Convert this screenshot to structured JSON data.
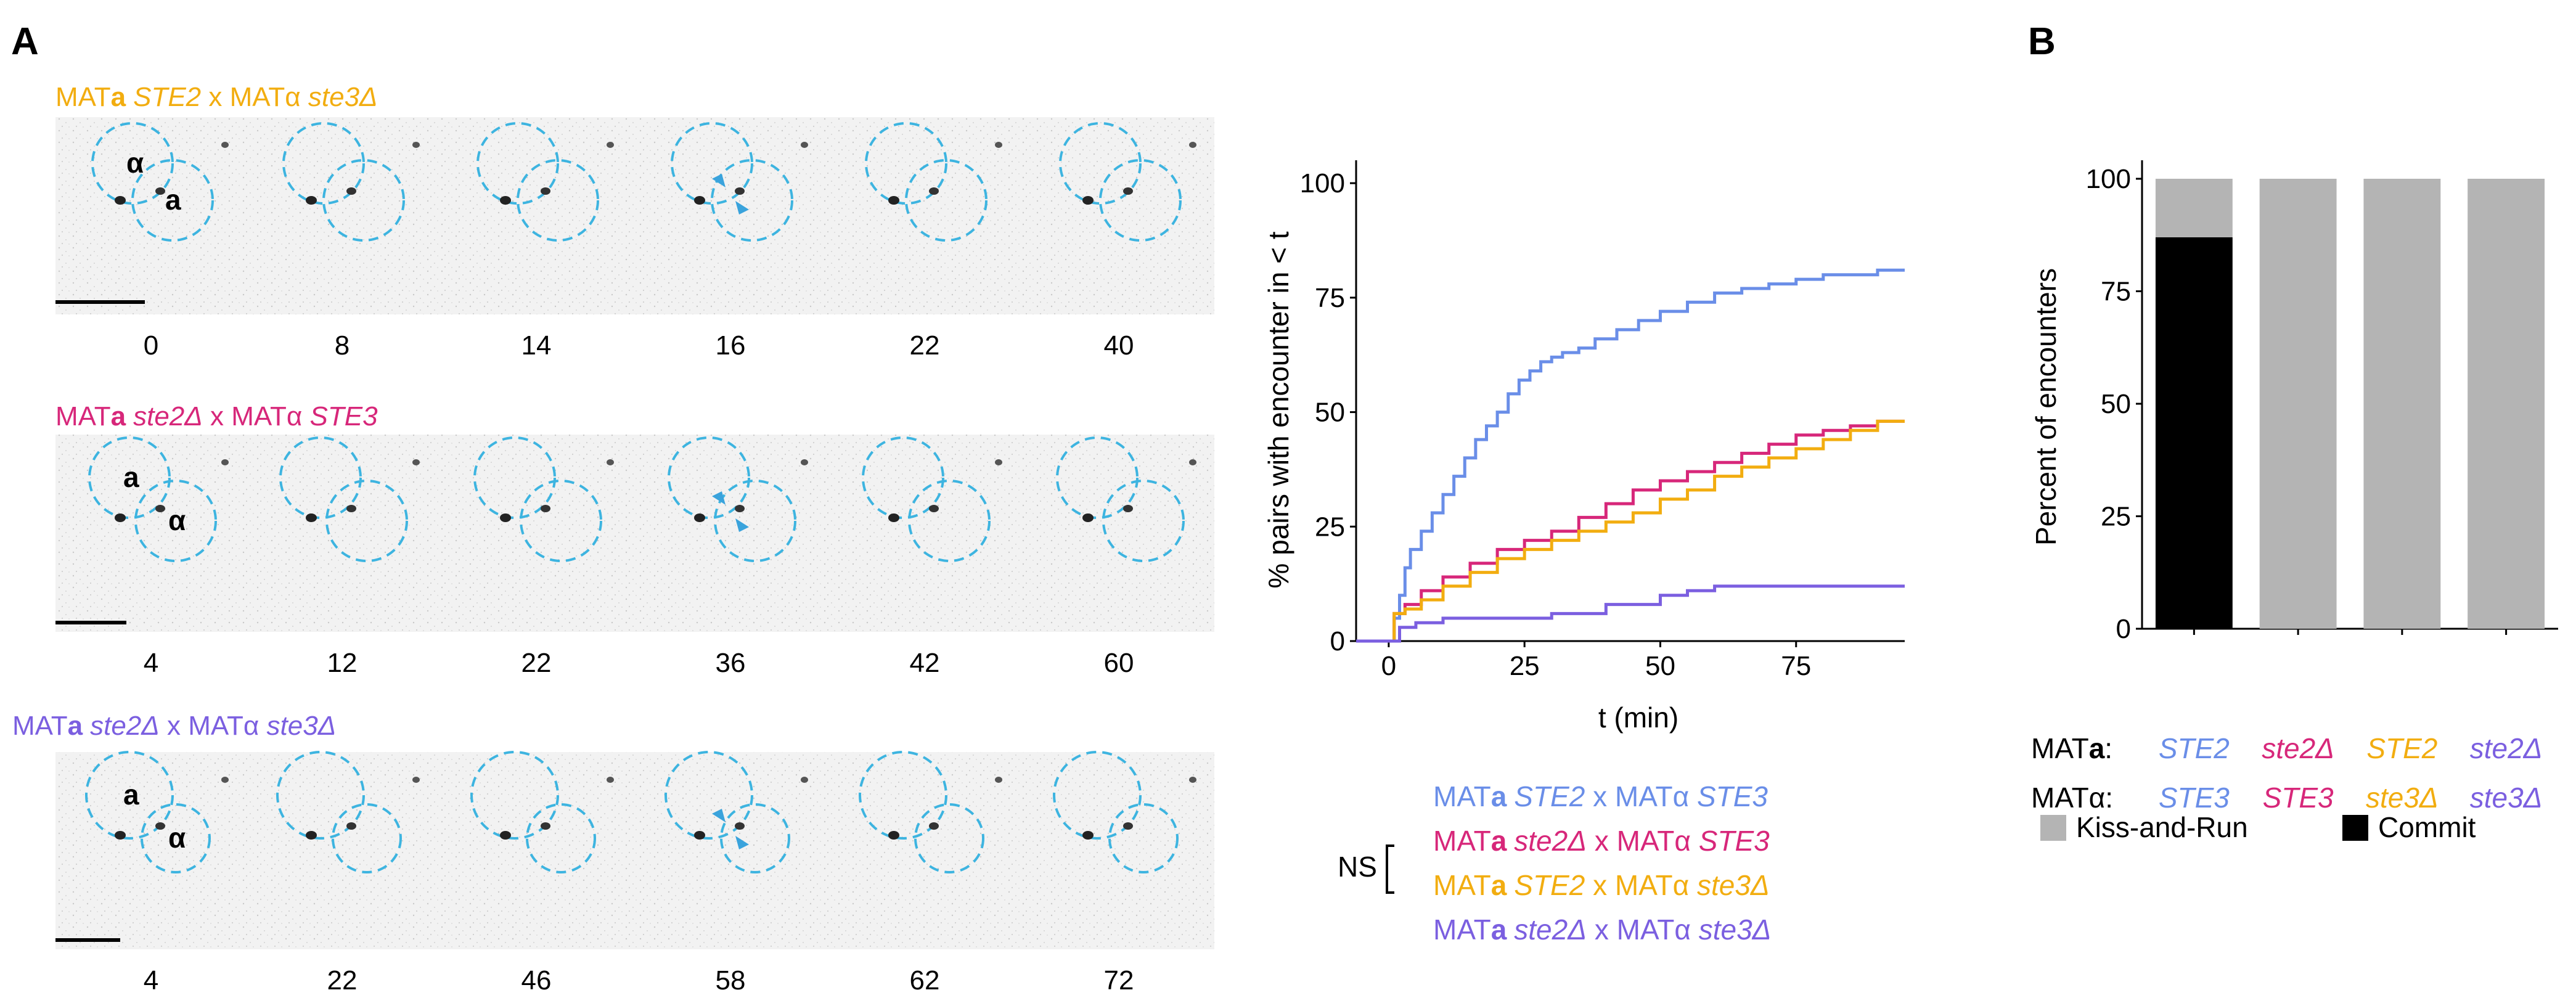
{
  "panel_labels": {
    "a": "A",
    "b": "B"
  },
  "colors": {
    "blue": "#6a8ee8",
    "magenta": "#d7277a",
    "orange": "#f2ad10",
    "purple": "#7b5fe0",
    "circle": "#3db4e0",
    "arrow": "#3aa3dc",
    "grey": "#b4b4b4",
    "black": "#000000"
  },
  "timelapse_rows": [
    {
      "title": {
        "prefix": "MAT",
        "a": "a",
        "gene1": "STE2",
        "mid": " x MATα ",
        "gene2": "ste3Δ"
      },
      "color": "#f2ad10",
      "times": [
        "0",
        "8",
        "14",
        "16",
        "22",
        "40"
      ],
      "cell_labels": [
        "α",
        "a"
      ]
    },
    {
      "title": {
        "prefix": "MAT",
        "a": "a",
        "gene1": "ste2Δ",
        "mid": " x MATα ",
        "gene2": "STE3"
      },
      "color": "#d7277a",
      "times": [
        "4",
        "12",
        "22",
        "36",
        "42",
        "60"
      ],
      "cell_labels": [
        "a",
        "α"
      ]
    },
    {
      "title": {
        "prefix": "MAT",
        "a": "a",
        "gene1": "ste2Δ",
        "mid": " x MATα ",
        "gene2": "ste3Δ"
      },
      "color": "#7b5fe0",
      "times": [
        "4",
        "22",
        "46",
        "58",
        "62",
        "72"
      ],
      "cell_labels": [
        "a",
        "α"
      ]
    }
  ],
  "legend_a": {
    "entries": [
      {
        "prefix": "MAT",
        "a": "a",
        "gene1": "STE2",
        "mid": " x MATα ",
        "gene2": "STE3",
        "color": "#6a8ee8"
      },
      {
        "prefix": "MAT",
        "a": "a",
        "gene1": "ste2Δ",
        "mid": " x MATα ",
        "gene2": "STE3",
        "color": "#d7277a"
      },
      {
        "prefix": "MAT",
        "a": "a",
        "gene1": "STE2",
        "mid": " x MATα ",
        "gene2": "ste3Δ",
        "color": "#f2ad10"
      },
      {
        "prefix": "MAT",
        "a": "a",
        "gene1": "ste2Δ",
        "mid": " x MATα ",
        "gene2": "ste3Δ",
        "color": "#7b5fe0"
      }
    ],
    "ns_label": "NS"
  },
  "legend_b": {
    "mata_label": {
      "prefix": "MAT",
      "a": "a",
      "suffix": ":"
    },
    "matalpha_label": "MATα:",
    "mata_genes": [
      {
        "text": "STE2",
        "color": "#6a8ee8"
      },
      {
        "text": "ste2Δ",
        "color": "#d7277a"
      },
      {
        "text": "STE2",
        "color": "#f2ad10"
      },
      {
        "text": "ste2Δ",
        "color": "#7b5fe0"
      }
    ],
    "matalpha_genes": [
      {
        "text": "STE3",
        "color": "#6a8ee8"
      },
      {
        "text": "STE3",
        "color": "#d7277a"
      },
      {
        "text": "ste3Δ",
        "color": "#f2ad10"
      },
      {
        "text": "ste3Δ",
        "color": "#7b5fe0"
      }
    ],
    "fill_legend": [
      {
        "label": "Kiss-and-Run",
        "color": "#b4b4b4"
      },
      {
        "label": "Commit",
        "color": "#000000"
      }
    ]
  },
  "chart_data": [
    {
      "type": "line",
      "title": "",
      "xlabel": "t (min)",
      "ylabel": "% pairs with encounter in < t",
      "xlim": [
        -6,
        95
      ],
      "ylim": [
        0,
        105
      ],
      "xticks": [
        0,
        25,
        50,
        75
      ],
      "yticks": [
        0,
        25,
        50,
        75,
        100
      ],
      "grid": false,
      "legend": "below",
      "series": [
        {
          "color": "#6a8ee8",
          "x": [
            -6,
            0,
            1,
            2,
            3,
            4,
            6,
            8,
            10,
            12,
            14,
            16,
            18,
            20,
            22,
            24,
            26,
            28,
            30,
            32,
            35,
            38,
            42,
            46,
            50,
            55,
            60,
            65,
            70,
            75,
            80,
            85,
            90,
            95
          ],
          "y": [
            0,
            0,
            5,
            10,
            16,
            20,
            24,
            28,
            32,
            36,
            40,
            44,
            47,
            50,
            54,
            57,
            59,
            61,
            62,
            63,
            64,
            66,
            68,
            70,
            72,
            74,
            76,
            77,
            78,
            79,
            80,
            80,
            81,
            81
          ]
        },
        {
          "color": "#d7277a",
          "x": [
            -6,
            0,
            1,
            3,
            6,
            10,
            15,
            20,
            25,
            30,
            35,
            40,
            45,
            50,
            55,
            60,
            65,
            70,
            75,
            80,
            85,
            90,
            95
          ],
          "y": [
            0,
            0,
            6,
            8,
            11,
            14,
            17,
            20,
            22,
            24,
            27,
            30,
            33,
            35,
            37,
            39,
            41,
            43,
            45,
            46,
            47,
            48,
            48
          ]
        },
        {
          "color": "#f2ad10",
          "x": [
            -6,
            0,
            1,
            3,
            6,
            10,
            15,
            20,
            25,
            30,
            35,
            40,
            45,
            50,
            55,
            60,
            65,
            70,
            75,
            80,
            85,
            90,
            95
          ],
          "y": [
            0,
            0,
            6,
            7,
            9,
            12,
            15,
            18,
            20,
            22,
            24,
            26,
            28,
            31,
            33,
            36,
            38,
            40,
            42,
            44,
            46,
            48,
            48
          ]
        },
        {
          "color": "#7b5fe0",
          "x": [
            -6,
            0,
            2,
            5,
            10,
            20,
            30,
            40,
            50,
            55,
            60,
            70,
            80,
            90,
            95
          ],
          "y": [
            0,
            0,
            3,
            4,
            5,
            5,
            6,
            8,
            10,
            11,
            12,
            12,
            12,
            12,
            12
          ]
        }
      ]
    },
    {
      "type": "bar",
      "title": "",
      "xlabel": "",
      "ylabel": "Percent of encounters",
      "ylim": [
        0,
        100
      ],
      "yticks": [
        0,
        25,
        50,
        75,
        100
      ],
      "grid": false,
      "categories": [
        "STE2 / STE3",
        "ste2Δ / STE3",
        "STE2 / ste3Δ",
        "ste2Δ / ste3Δ"
      ],
      "series": [
        {
          "name": "Commit",
          "color": "#000000",
          "values": [
            87,
            0,
            0,
            0
          ]
        },
        {
          "name": "Kiss-and-Run",
          "color": "#b4b4b4",
          "values": [
            13,
            100,
            100,
            100
          ]
        }
      ]
    }
  ]
}
